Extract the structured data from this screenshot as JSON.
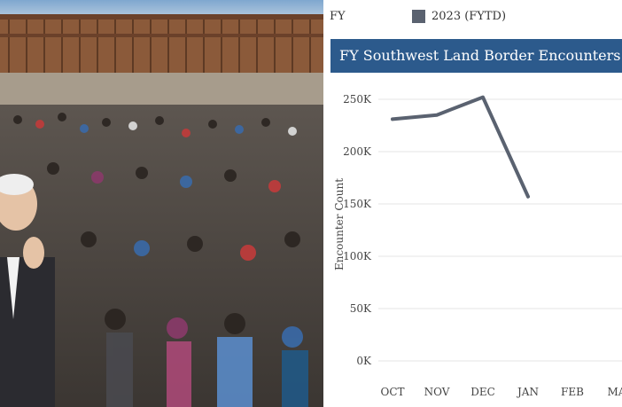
{
  "legend": {
    "prefix": "FY",
    "series_name": "2023 (FYTD)",
    "series_color": "#5a6270"
  },
  "chart_data": {
    "type": "line",
    "title": "FY Southwest Land Border Encounters by Mo",
    "ylabel": "Encounter Count",
    "xlabel": "",
    "categories": [
      "OCT",
      "NOV",
      "DEC",
      "JAN",
      "FEB",
      "MA"
    ],
    "series": [
      {
        "name": "2023 (FYTD)",
        "values": [
          231000,
          235000,
          252000,
          157000,
          null,
          null
        ],
        "color": "#5a6270"
      }
    ],
    "y_ticks": [
      "0K",
      "50K",
      "100K",
      "150K",
      "200K",
      "250K"
    ],
    "ylim": [
      0,
      250000
    ],
    "grid": true,
    "legend_position": "top-left"
  },
  "photo": {
    "description_icon": "crowd-photo"
  }
}
